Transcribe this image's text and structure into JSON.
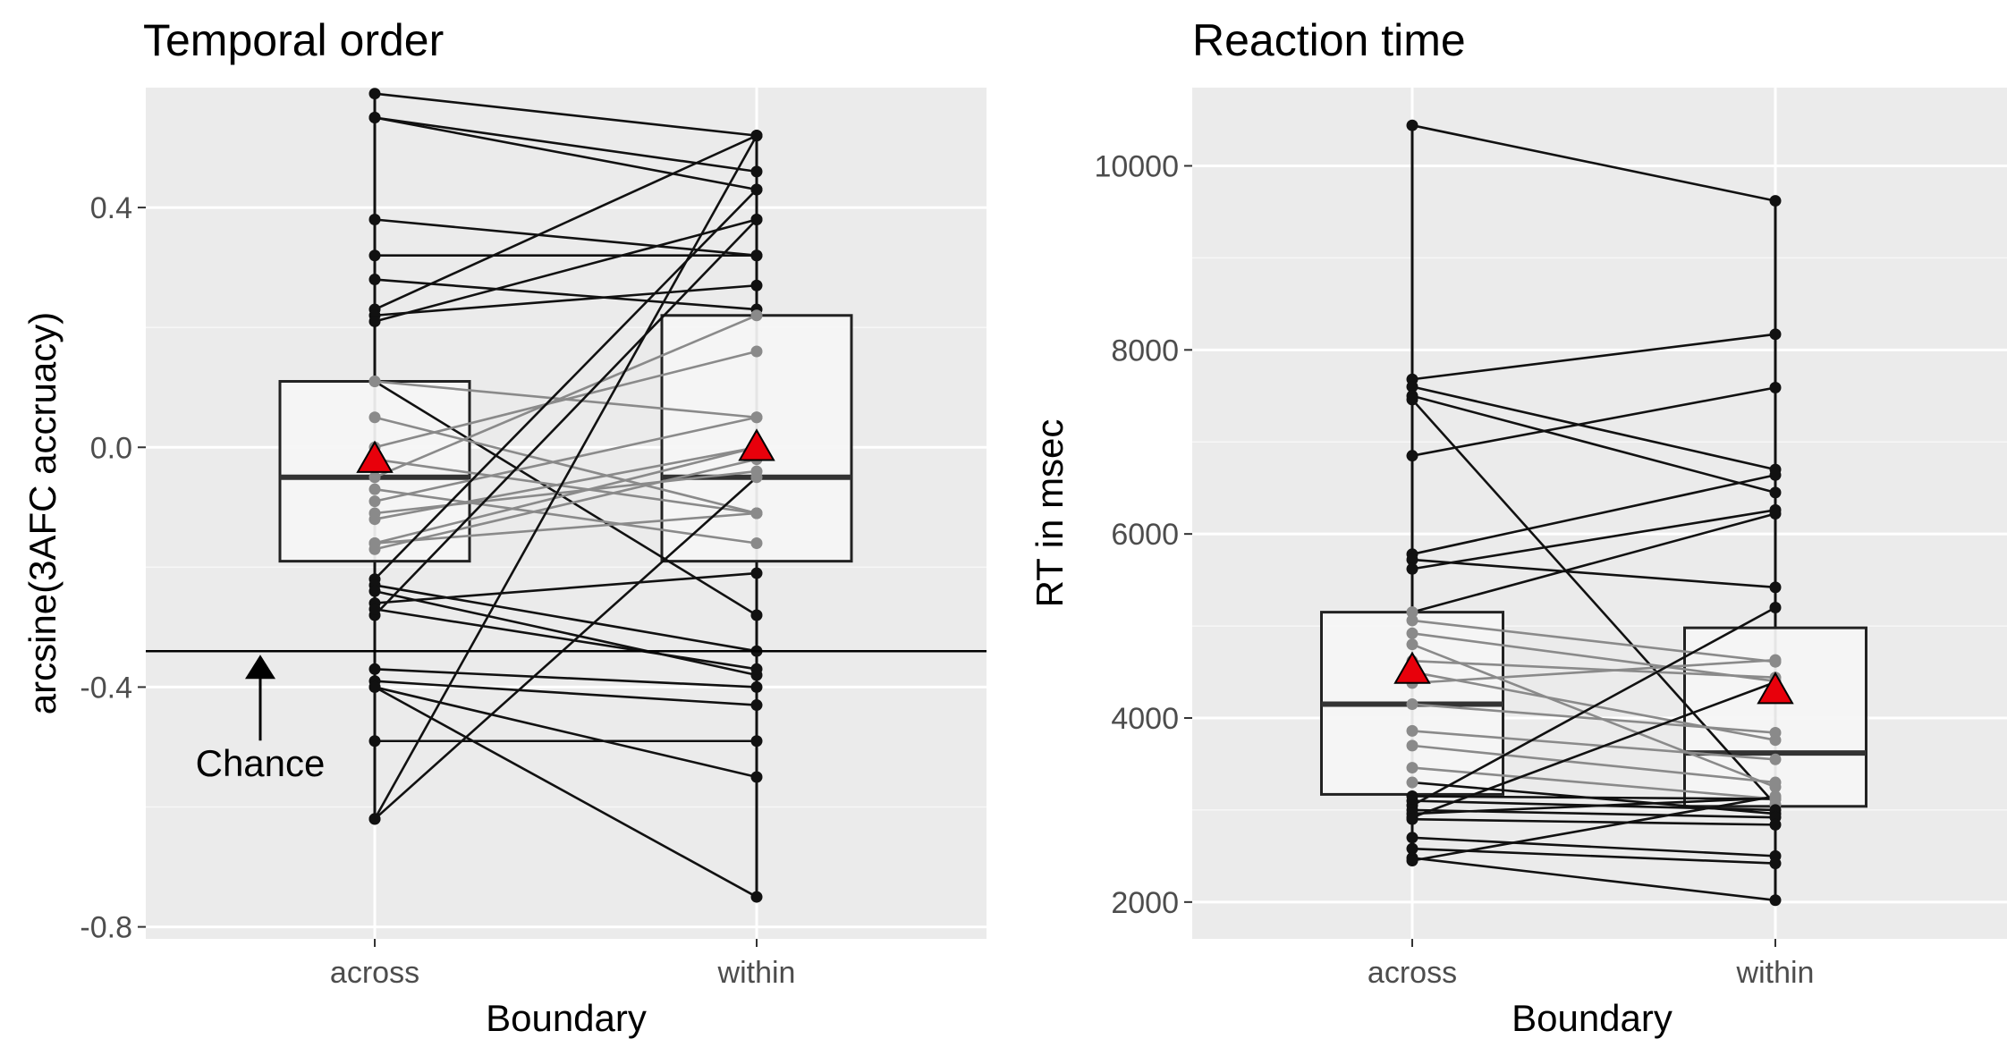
{
  "chart_data": [
    {
      "type": "box",
      "title": "Temporal order",
      "xlabel": "Boundary",
      "ylabel": "arcsine(3AFC accruacy)",
      "categories": [
        "across",
        "within"
      ],
      "ylim": [
        -0.82,
        0.6
      ],
      "yticks": [
        -0.8,
        -0.4,
        0.0,
        0.4
      ],
      "ytick_labels": [
        "-0.8",
        "-0.4",
        "0.0",
        "0.4"
      ],
      "grid": true,
      "boxes": [
        {
          "category": "across",
          "q1": -0.19,
          "median": -0.05,
          "q3": 0.11
        },
        {
          "category": "within",
          "q1": -0.19,
          "median": -0.05,
          "q3": 0.22
        }
      ],
      "means": [
        -0.02,
        0.0
      ],
      "mean_color": "#e8000b",
      "reference_line": {
        "y": -0.34,
        "label": "Chance"
      },
      "pairs": [
        [
          0.59,
          0.52
        ],
        [
          0.55,
          0.43
        ],
        [
          0.55,
          0.46
        ],
        [
          0.38,
          0.32
        ],
        [
          0.32,
          0.32
        ],
        [
          0.28,
          0.23
        ],
        [
          0.23,
          0.52
        ],
        [
          0.22,
          0.27
        ],
        [
          0.21,
          0.38
        ],
        [
          0.11,
          -0.28
        ],
        [
          0.11,
          0.05
        ],
        [
          0.05,
          -0.11
        ],
        [
          0.0,
          0.16
        ],
        [
          -0.02,
          -0.11
        ],
        [
          -0.05,
          0.22
        ],
        [
          -0.07,
          -0.16
        ],
        [
          -0.09,
          0.05
        ],
        [
          -0.11,
          -0.04
        ],
        [
          -0.12,
          0.0
        ],
        [
          -0.16,
          -0.11
        ],
        [
          -0.16,
          0.0
        ],
        [
          -0.17,
          -0.02
        ],
        [
          -0.22,
          0.43
        ],
        [
          -0.23,
          -0.34
        ],
        [
          -0.24,
          -0.38
        ],
        [
          -0.26,
          -0.21
        ],
        [
          -0.28,
          0.38
        ],
        [
          -0.37,
          -0.4
        ],
        [
          -0.39,
          -0.43
        ],
        [
          -0.4,
          -0.55
        ],
        [
          -0.49,
          -0.49
        ],
        [
          -0.62,
          -0.05
        ],
        [
          -0.62,
          0.52
        ],
        [
          -0.4,
          -0.75
        ],
        [
          -0.27,
          -0.37
        ]
      ]
    },
    {
      "type": "box",
      "title": "Reaction time",
      "xlabel": "Boundary",
      "ylabel": "RT in msec",
      "categories": [
        "across",
        "within"
      ],
      "ylim": [
        1600,
        10850
      ],
      "yticks": [
        2000,
        4000,
        6000,
        8000,
        10000
      ],
      "ytick_labels": [
        "2000",
        "4000",
        "6000",
        "8000",
        "10000"
      ],
      "grid": true,
      "boxes": [
        {
          "category": "across",
          "q1": 3170,
          "median": 4150,
          "q3": 5150
        },
        {
          "category": "within",
          "q1": 3040,
          "median": 3620,
          "q3": 4980
        }
      ],
      "means": [
        4520,
        4300
      ],
      "mean_color": "#e8000b",
      "pairs": [
        [
          10440,
          9620
        ],
        [
          7680,
          8170
        ],
        [
          7600,
          6700
        ],
        [
          7500,
          6450
        ],
        [
          7460,
          3060
        ],
        [
          6850,
          7590
        ],
        [
          5780,
          6640
        ],
        [
          5720,
          5420
        ],
        [
          5620,
          6260
        ],
        [
          5150,
          6220
        ],
        [
          5060,
          4610
        ],
        [
          4920,
          4400
        ],
        [
          4800,
          3250
        ],
        [
          4620,
          4440
        ],
        [
          4500,
          3760
        ],
        [
          4380,
          4630
        ],
        [
          4150,
          3840
        ],
        [
          3860,
          3550
        ],
        [
          3700,
          3300
        ],
        [
          3460,
          3120
        ],
        [
          3300,
          2960
        ],
        [
          3150,
          3120
        ],
        [
          3100,
          3000
        ],
        [
          3050,
          5200
        ],
        [
          3000,
          2920
        ],
        [
          2960,
          3130
        ],
        [
          2920,
          4390
        ],
        [
          2900,
          2840
        ],
        [
          2700,
          2500
        ],
        [
          2580,
          2420
        ],
        [
          2480,
          2020
        ],
        [
          2450,
          3150
        ]
      ]
    }
  ]
}
